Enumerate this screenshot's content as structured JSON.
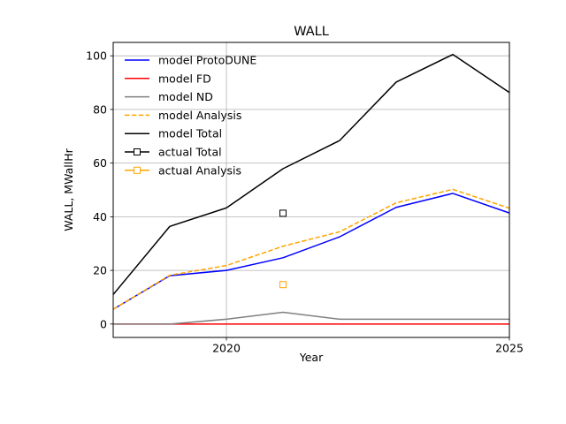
{
  "chart_data": {
    "type": "line",
    "title": "WALL",
    "xlabel": "Year",
    "ylabel": "WALL, MWallHr",
    "xlim": [
      2018,
      2025
    ],
    "ylim": [
      -5,
      105
    ],
    "x_ticks": [
      2020,
      2025
    ],
    "y_ticks": [
      0,
      20,
      40,
      60,
      80,
      100
    ],
    "grid": true,
    "legend_position": "top-left",
    "x": [
      2018,
      2019,
      2020,
      2021,
      2022,
      2023,
      2024,
      2025
    ],
    "series": [
      {
        "name": "model ProtoDUNE",
        "color": "#0000ff",
        "dash": "solid",
        "marker": "none",
        "values": [
          5.5,
          18,
          20,
          24.7,
          32.5,
          43.5,
          48.7,
          41.4
        ]
      },
      {
        "name": "model FD",
        "color": "#ff0000",
        "dash": "solid",
        "marker": "none",
        "values": [
          0,
          0,
          0,
          0,
          0,
          0,
          0,
          0
        ]
      },
      {
        "name": "model ND",
        "color": "#808080",
        "dash": "solid",
        "marker": "none",
        "values": [
          0,
          0,
          1.8,
          4.4,
          1.8,
          1.8,
          1.8,
          1.8
        ]
      },
      {
        "name": "model Analysis",
        "color": "#ffa500",
        "dash": "dashed",
        "marker": "none",
        "values": [
          5.5,
          18.2,
          21.8,
          29,
          34.4,
          45.2,
          50.2,
          43.2
        ]
      },
      {
        "name": "model Total",
        "color": "#000000",
        "dash": "solid",
        "marker": "none",
        "values": [
          11,
          36.4,
          43.3,
          57.9,
          68.4,
          90.2,
          100.5,
          86.3
        ]
      },
      {
        "name": "actual Total",
        "color": "#000000",
        "dash": "none",
        "marker": "square",
        "points": [
          [
            2021,
            41.3
          ]
        ]
      },
      {
        "name": "actual Analysis",
        "color": "#ffa500",
        "dash": "none",
        "marker": "square",
        "points": [
          [
            2021,
            14.7
          ]
        ]
      }
    ]
  }
}
